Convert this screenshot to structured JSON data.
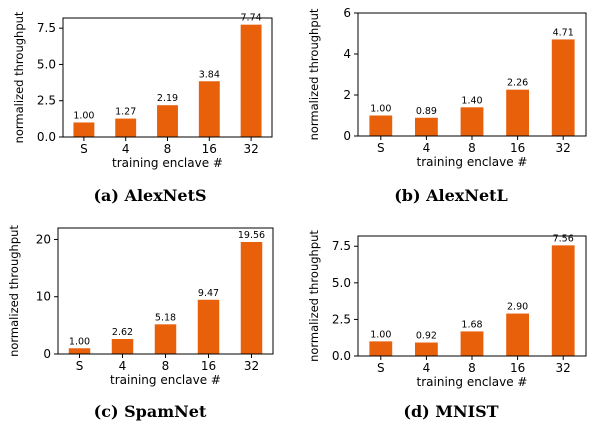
{
  "chart_data": [
    {
      "type": "bar",
      "caption": "(a) AlexNetS",
      "categories": [
        "S",
        "4",
        "8",
        "16",
        "32"
      ],
      "values": [
        1.0,
        1.27,
        2.19,
        3.84,
        7.74
      ],
      "value_labels": [
        "1.00",
        "1.27",
        "2.19",
        "3.84",
        "7.74"
      ],
      "xlabel": "training enclave #",
      "ylabel": "normalized throughput",
      "ylim": [
        0,
        8.2
      ],
      "yticks": [
        0,
        2.5,
        5,
        7.5
      ],
      "ytick_labels": [
        "0.0",
        "2.5",
        "5.0",
        "7.5"
      ],
      "color": "#e8600a"
    },
    {
      "type": "bar",
      "caption": "(b) AlexNetL",
      "categories": [
        "S",
        "4",
        "8",
        "16",
        "32"
      ],
      "values": [
        1.0,
        0.89,
        1.4,
        2.26,
        4.71
      ],
      "value_labels": [
        "1.00",
        "0.89",
        "1.40",
        "2.26",
        "4.71"
      ],
      "xlabel": "training enclave #",
      "ylabel": "normalized throughput",
      "ylim": [
        0,
        6
      ],
      "yticks": [
        0,
        2,
        4,
        6
      ],
      "ytick_labels": [
        "0",
        "2",
        "4",
        "6"
      ],
      "color": "#e8600a"
    },
    {
      "type": "bar",
      "caption": "(c) SpamNet",
      "categories": [
        "S",
        "4",
        "8",
        "16",
        "32"
      ],
      "values": [
        1.0,
        2.62,
        5.18,
        9.47,
        19.56
      ],
      "value_labels": [
        "1.00",
        "2.62",
        "5.18",
        "9.47",
        "19.56"
      ],
      "xlabel": "training enclave #",
      "ylabel": "normalized throughput",
      "ylim": [
        0,
        22
      ],
      "yticks": [
        0,
        10,
        20
      ],
      "ytick_labels": [
        "0",
        "10",
        "20"
      ],
      "color": "#e8600a"
    },
    {
      "type": "bar",
      "caption": "(d) MNIST",
      "categories": [
        "S",
        "4",
        "8",
        "16",
        "32"
      ],
      "values": [
        1.0,
        0.92,
        1.68,
        2.9,
        7.56
      ],
      "value_labels": [
        "1.00",
        "0.92",
        "1.68",
        "2.90",
        "7.56"
      ],
      "xlabel": "training enclave #",
      "ylabel": "normalized throughput",
      "ylim": [
        0,
        8.2
      ],
      "yticks": [
        0,
        2.5,
        5,
        7.5
      ],
      "ytick_labels": [
        "0.0",
        "2.5",
        "5.0",
        "7.5"
      ],
      "color": "#e8600a"
    }
  ]
}
